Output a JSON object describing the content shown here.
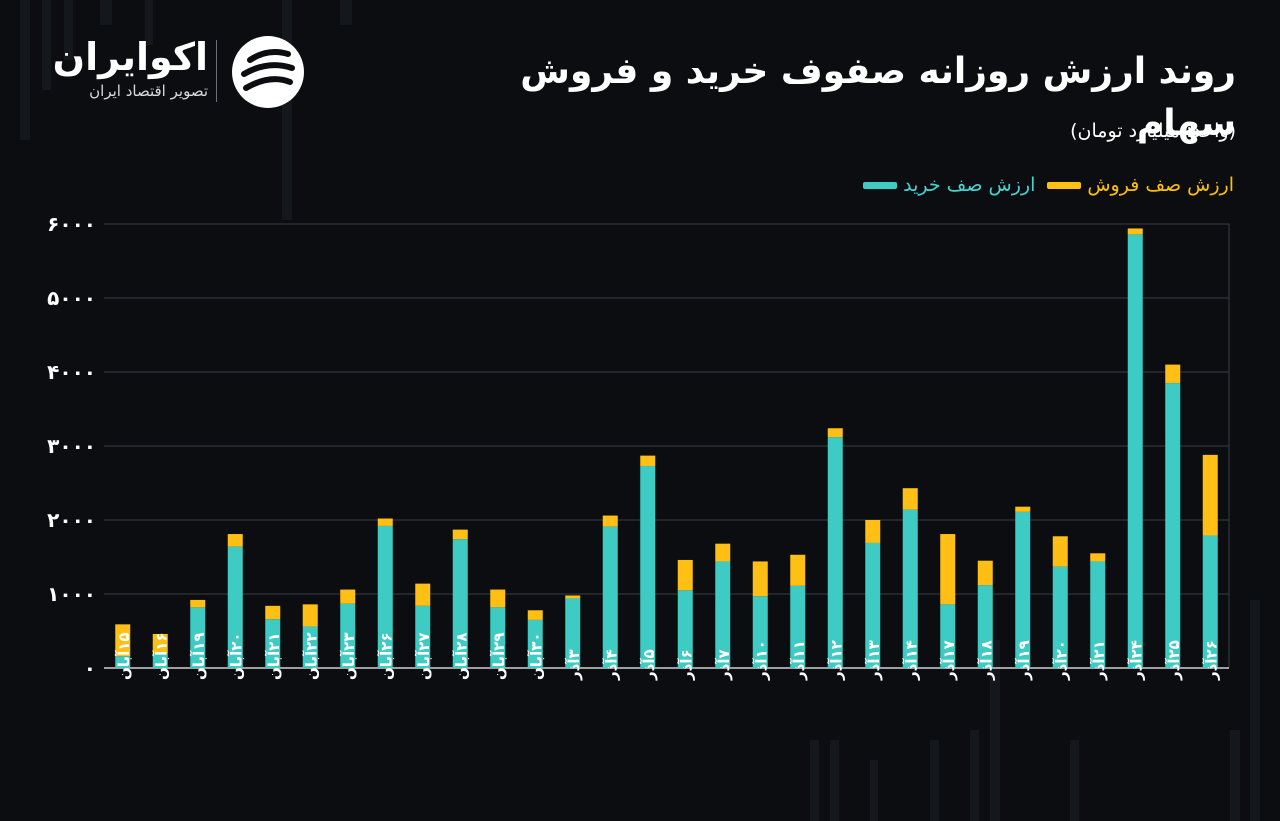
{
  "brand": {
    "name": "اکوایران",
    "subtitle": "تصویر اقتصاد ایران"
  },
  "header": {
    "title": "روند ارزش روزانه صفوف خرید و فروش سهام",
    "unit": "(واحد: میلیارد تومان)"
  },
  "colors": {
    "background": "#0b0d10",
    "buy": "#3dcbc3",
    "sell": "#ffbf14",
    "grid": "#3a3d42",
    "sell_label": "#ffc000",
    "buy_label": "#46d4cc"
  },
  "chart_data": {
    "type": "bar",
    "stacked": true,
    "ylim": [
      0,
      6000
    ],
    "yticks": [
      "۰",
      "۱۰۰۰",
      "۲۰۰۰",
      "۳۰۰۰",
      "۴۰۰۰",
      "۵۰۰۰",
      "۶۰۰۰"
    ],
    "ytick_values": [
      0,
      1000,
      2000,
      3000,
      4000,
      5000,
      6000
    ],
    "grid": true,
    "legend_position": "top-right",
    "categories": [
      "۱۵آبان",
      "۱۶آبان",
      "۱۹آبان",
      "۲۰آبان",
      "۲۱آبان",
      "۲۲آبان",
      "۲۳آبان",
      "۲۶آبان",
      "۲۷آبان",
      "۲۸آبان",
      "۲۹آبان",
      "۳۰آبان",
      "۳آذر",
      "۴آذر",
      "۵آذر",
      "۶آذر",
      "۷آذر",
      "۱۰آذر",
      "۱۱آذر",
      "۱۲آذر",
      "۱۳آذر",
      "۱۴آذر",
      "۱۷آذر",
      "۱۸آذر",
      "۱۹آذر",
      "۲۰آذر",
      "۲۱آذر",
      "۲۴آذر",
      "۲۵آذر",
      "۲۶آذر"
    ],
    "series": [
      {
        "name": "ارزش صف خرید",
        "values": [
          160,
          190,
          820,
          1640,
          660,
          560,
          870,
          1920,
          840,
          1740,
          820,
          650,
          940,
          1910,
          2730,
          1050,
          1440,
          970,
          1110,
          3120,
          1690,
          2140,
          860,
          1120,
          2110,
          1370,
          1440,
          5860,
          3850,
          1790
        ]
      },
      {
        "name": "ارزش صف فروش",
        "values": [
          430,
          270,
          100,
          170,
          180,
          300,
          190,
          100,
          300,
          130,
          240,
          130,
          40,
          150,
          140,
          410,
          240,
          470,
          420,
          120,
          310,
          290,
          950,
          330,
          70,
          410,
          110,
          80,
          250,
          1090
        ]
      }
    ]
  }
}
